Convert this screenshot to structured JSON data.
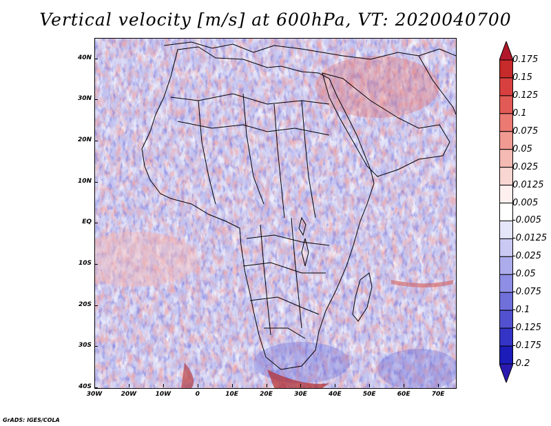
{
  "title": "Vertical velocity [m/s] at 600hPa, VT: 2020040700",
  "footer": "GrADS: IGES/COLA",
  "map": {
    "lon_range": [
      -30,
      75
    ],
    "lat_range": [
      -40,
      45
    ],
    "lat_labels": [
      "40N",
      "30N",
      "20N",
      "10N",
      "EQ",
      "10S",
      "20S",
      "30S",
      "40S"
    ],
    "lat_values": [
      40,
      30,
      20,
      10,
      0,
      -10,
      -20,
      -30,
      -40
    ],
    "lon_labels": [
      "30W",
      "20W",
      "10W",
      "0",
      "10E",
      "20E",
      "30E",
      "40E",
      "50E",
      "60E",
      "70E"
    ],
    "lon_values": [
      -30,
      -20,
      -10,
      0,
      10,
      20,
      30,
      40,
      50,
      60,
      70
    ]
  },
  "colorbar": {
    "labels": [
      "0.175",
      "0.15",
      "0.125",
      "0.1",
      "0.075",
      "0.05",
      "0.025",
      "0.0125",
      "0.005",
      "-0.005",
      "-0.0125",
      "-0.025",
      "-0.05",
      "-0.075",
      "-0.1",
      "-0.125",
      "-0.175",
      "-0.2"
    ],
    "colors": [
      "#b2182b",
      "#c62a2a",
      "#d84040",
      "#e25a55",
      "#ea7a72",
      "#f09a92",
      "#f5bab3",
      "#f9d6d1",
      "#fdf0ee",
      "#ffffff",
      "#e6e6fa",
      "#c9c9f3",
      "#acacec",
      "#8e8ee4",
      "#7070db",
      "#5252d1",
      "#3434c6",
      "#1c1cb8",
      "#2a1ab0"
    ]
  }
}
